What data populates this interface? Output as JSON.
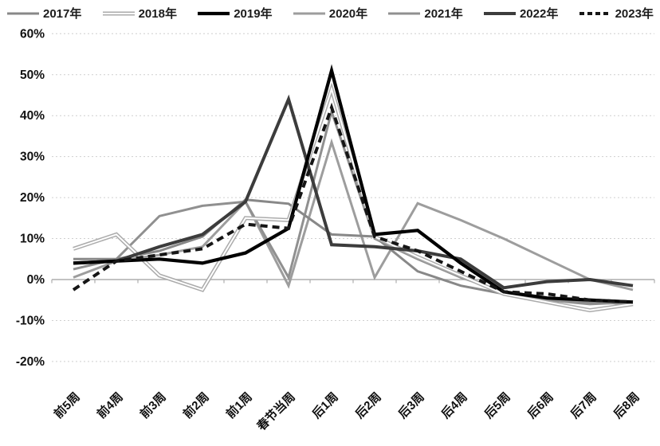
{
  "chart_data": {
    "type": "line",
    "title": "",
    "xlabel": "",
    "ylabel": "",
    "categories": [
      "前5周",
      "前4周",
      "前3周",
      "前2周",
      "前1周",
      "春节当周",
      "后1周",
      "后2周",
      "后3周",
      "后4周",
      "后5周",
      "后6周",
      "后7周",
      "后8周"
    ],
    "y_ticks": [
      "60%",
      "50%",
      "40%",
      "30%",
      "20%",
      "10%",
      "0%",
      "-10%",
      "-20%"
    ],
    "ylim": [
      -20,
      60
    ],
    "y_step": 10,
    "unit": "%",
    "grid": "dashed-horizontal",
    "legend_position": "top",
    "x_axis_label_rotation": 45,
    "axis_color": "#aeaeae",
    "grid_color": "#cfcfcf",
    "series": [
      {
        "name": "2017年",
        "style": "solid",
        "color": "#888888",
        "width": 3,
        "values": [
          5,
          5,
          7,
          10.5,
          19.5,
          18.5,
          11,
          10.5,
          2,
          -1.5,
          -3.5,
          -4.5,
          -5.5,
          -6
        ]
      },
      {
        "name": "2018年",
        "style": "double",
        "color": "#ababab",
        "width": 5,
        "values": [
          7.5,
          11,
          1,
          -2.5,
          15,
          14.5,
          46.5,
          10.5,
          5.5,
          1,
          -3.5,
          -5.5,
          -7.5,
          -6
        ]
      },
      {
        "name": "2019年",
        "style": "solid",
        "color": "#000000",
        "width": 4.2,
        "values": [
          4,
          4.5,
          5,
          4,
          6.5,
          12.5,
          51,
          11,
          12,
          4,
          -3,
          -4.5,
          -5,
          -5.5
        ]
      },
      {
        "name": "2020年",
        "style": "solid",
        "color": "#9d9d9d",
        "width": 3,
        "values": [
          0.5,
          4.5,
          6,
          8,
          19,
          -1.5,
          33.5,
          0.5,
          18.6,
          14.5,
          10,
          5,
          0,
          -2.5
        ]
      },
      {
        "name": "2021年",
        "style": "solid",
        "color": "#909090",
        "width": 3,
        "values": [
          2.5,
          5,
          15.5,
          18,
          19,
          0.5,
          41,
          10,
          5,
          0.5,
          -3,
          -5,
          -6,
          -5.5
        ]
      },
      {
        "name": "2022年",
        "style": "solid",
        "color": "#3c3c3c",
        "width": 4,
        "values": [
          4,
          4.5,
          8,
          11,
          19,
          44,
          8.5,
          8,
          7,
          5,
          -2,
          -0.5,
          0,
          -1.5
        ]
      },
      {
        "name": "2023年",
        "style": "dashed",
        "color": "#161616",
        "width": 4,
        "values": [
          -2.5,
          4.5,
          6,
          7.5,
          13.5,
          12.5,
          42,
          10.5,
          7,
          2,
          -3,
          -3.5,
          -5,
          -5.5
        ]
      }
    ]
  }
}
